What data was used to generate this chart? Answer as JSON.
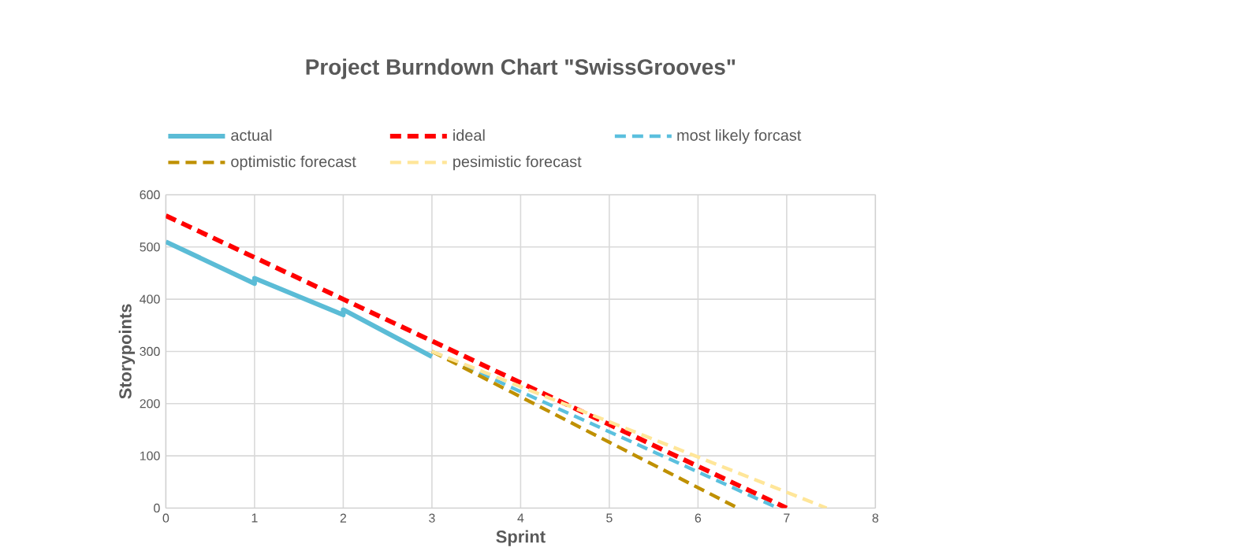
{
  "chart_data": {
    "type": "line",
    "title": "Project Burndown Chart \"SwissGrooves\"",
    "xlabel": "Sprint",
    "ylabel": "Storypoints",
    "xlim": [
      0,
      8
    ],
    "xticks": [
      0,
      1,
      2,
      3,
      4,
      5,
      6,
      7,
      8
    ],
    "ylim": [
      0,
      600
    ],
    "yticks": [
      0,
      100,
      200,
      300,
      400,
      500,
      600
    ],
    "grid": true,
    "legend": "top",
    "marker": "none",
    "series": [
      {
        "name": "actual",
        "color": "#5bbcd6",
        "line_style": "solid",
        "x": [
          0,
          1,
          1,
          2,
          2,
          3
        ],
        "values": [
          510,
          430,
          440,
          370,
          380,
          290
        ]
      },
      {
        "name": "ideal",
        "color": "#ff0000",
        "line_style": "dashed",
        "x": [
          0,
          1,
          2,
          3,
          4,
          5,
          6,
          7
        ],
        "values": [
          560,
          480,
          400,
          320,
          240,
          160,
          80,
          0
        ]
      },
      {
        "name": "most likely forcast",
        "color": "#5bc0de",
        "line_style": "dashed",
        "x": [
          3,
          6.9
        ],
        "values": [
          300,
          0
        ]
      },
      {
        "name": "optimistic forecast",
        "color": "#bf9000",
        "line_style": "dashed",
        "x": [
          3,
          6.45
        ],
        "values": [
          300,
          0
        ]
      },
      {
        "name": "pesimistic forecast",
        "color": "#ffe699",
        "line_style": "dashed",
        "x": [
          3,
          7.45
        ],
        "values": [
          300,
          0
        ]
      }
    ]
  }
}
